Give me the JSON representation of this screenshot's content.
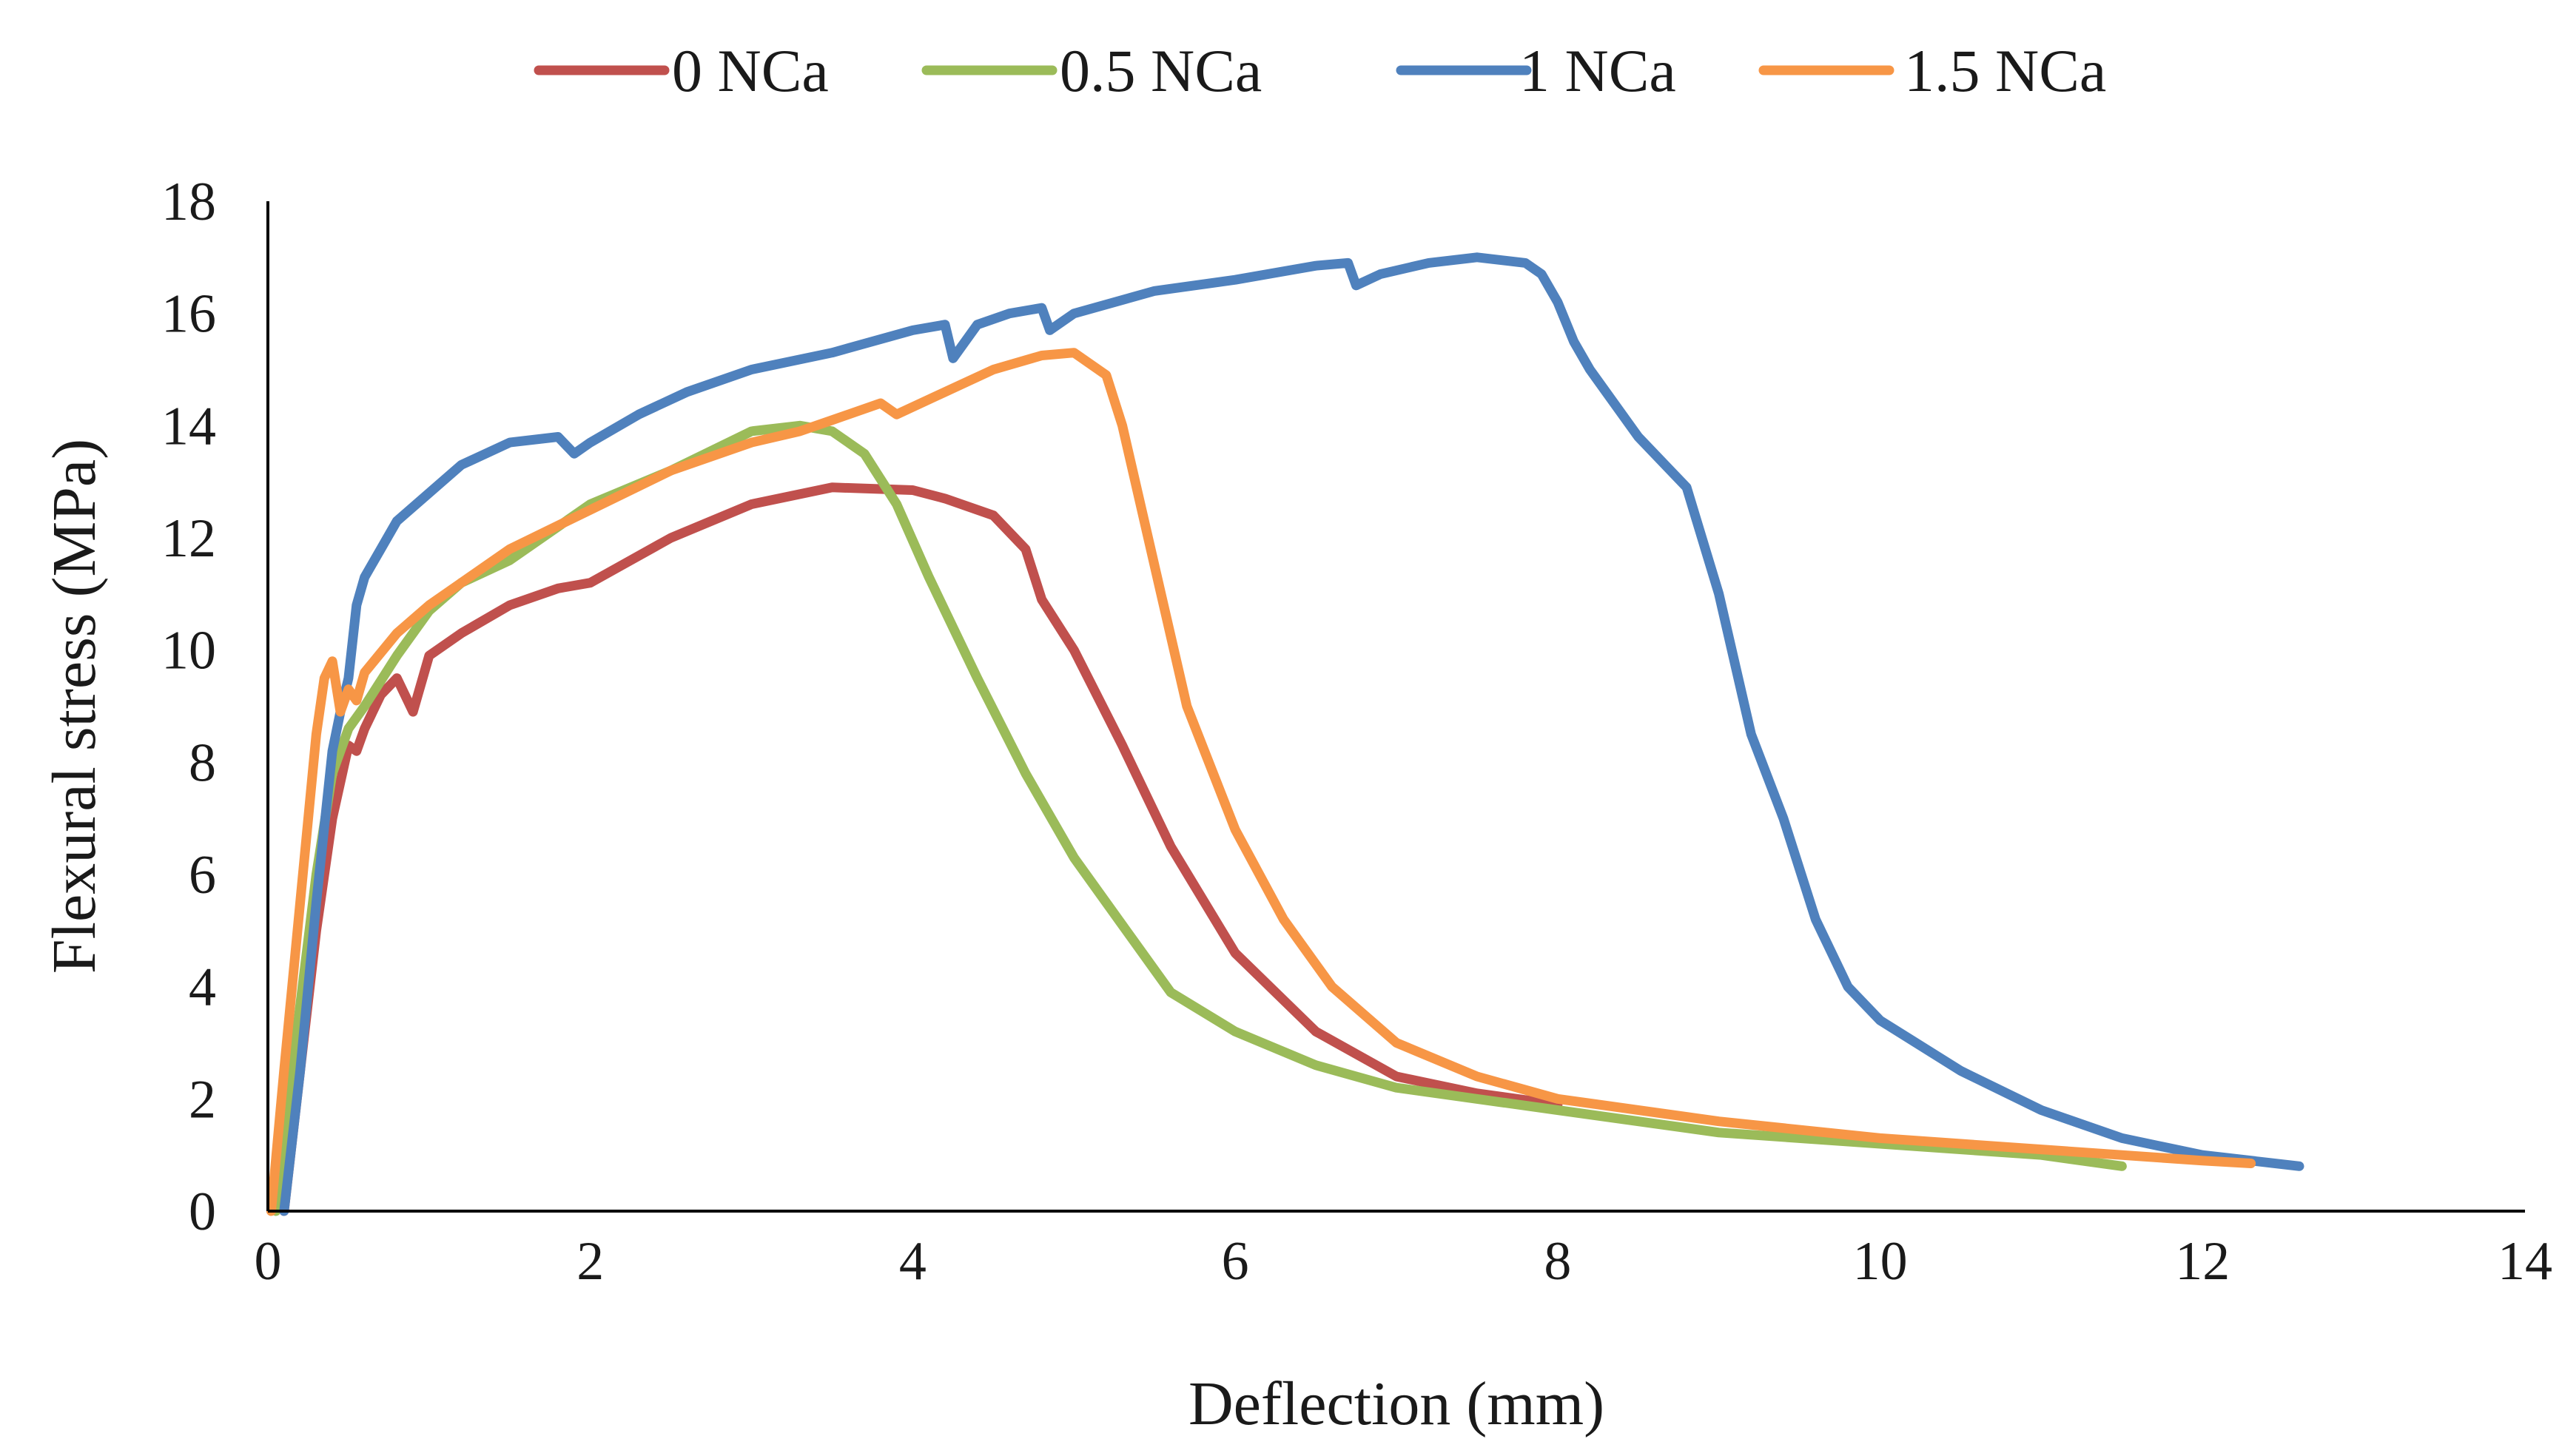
{
  "chart_data": {
    "type": "line",
    "title": "",
    "xlabel": "Deflection (mm)",
    "ylabel": "Flexural stress (MPa)",
    "xlim": [
      0,
      14
    ],
    "ylim": [
      0,
      18
    ],
    "xticks": [
      0,
      2,
      4,
      6,
      8,
      10,
      12,
      14
    ],
    "yticks": [
      0,
      2,
      4,
      6,
      8,
      10,
      12,
      14,
      16,
      18
    ],
    "legend_position": "top",
    "grid": false,
    "series": [
      {
        "name": "0 NCa",
        "color": "#c0504d",
        "x": [
          0.1,
          0.2,
          0.3,
          0.4,
          0.5,
          0.55,
          0.6,
          0.7,
          0.8,
          0.9,
          1.0,
          1.2,
          1.5,
          1.8,
          2.0,
          2.5,
          3.0,
          3.5,
          4.0,
          4.2,
          4.5,
          4.7,
          4.8,
          5.0,
          5.3,
          5.6,
          6.0,
          6.5,
          7.0,
          7.5,
          8.0
        ],
        "y": [
          0,
          2.5,
          5,
          7,
          8.3,
          8.2,
          8.6,
          9.2,
          9.5,
          8.9,
          9.9,
          10.3,
          10.8,
          11.1,
          11.2,
          12.0,
          12.6,
          12.9,
          12.85,
          12.7,
          12.4,
          11.8,
          10.9,
          10.0,
          8.3,
          6.5,
          4.6,
          3.2,
          2.4,
          2.1,
          1.9
        ]
      },
      {
        "name": "0.5 NCa",
        "color": "#9bbb59",
        "x": [
          0.05,
          0.15,
          0.3,
          0.4,
          0.5,
          0.6,
          0.8,
          1.0,
          1.2,
          1.5,
          2.0,
          2.5,
          3.0,
          3.3,
          3.5,
          3.7,
          3.9,
          4.1,
          4.4,
          4.7,
          5.0,
          5.3,
          5.6,
          6.0,
          6.5,
          7.0,
          8.0,
          9.0,
          10.0,
          11.0,
          11.5
        ],
        "y": [
          0,
          2.5,
          6,
          7.8,
          8.6,
          9.0,
          9.9,
          10.7,
          11.2,
          11.6,
          12.6,
          13.2,
          13.9,
          14.0,
          13.9,
          13.5,
          12.6,
          11.3,
          9.5,
          7.8,
          6.3,
          5.1,
          3.9,
          3.2,
          2.6,
          2.2,
          1.8,
          1.4,
          1.2,
          1.0,
          0.8
        ]
      },
      {
        "name": "1 NCa",
        "color": "#4f81bd",
        "x": [
          0.1,
          0.2,
          0.3,
          0.4,
          0.45,
          0.5,
          0.55,
          0.6,
          0.7,
          0.8,
          1.0,
          1.2,
          1.5,
          1.8,
          1.9,
          2.0,
          2.3,
          2.6,
          3.0,
          3.5,
          4.0,
          4.2,
          4.25,
          4.4,
          4.6,
          4.8,
          4.85,
          5.0,
          5.5,
          6.0,
          6.5,
          6.7,
          6.75,
          6.9,
          7.2,
          7.5,
          7.8,
          7.9,
          8.0,
          8.1,
          8.2,
          8.5,
          8.8,
          9.0,
          9.2,
          9.4,
          9.6,
          9.8,
          10.0,
          10.5,
          11.0,
          11.5,
          12.0,
          12.6
        ],
        "y": [
          0,
          2.5,
          5.5,
          8.2,
          8.9,
          9.5,
          10.8,
          11.3,
          11.8,
          12.3,
          12.8,
          13.3,
          13.7,
          13.8,
          13.5,
          13.7,
          14.2,
          14.6,
          15.0,
          15.3,
          15.7,
          15.8,
          15.2,
          15.8,
          16.0,
          16.1,
          15.7,
          16.0,
          16.4,
          16.6,
          16.85,
          16.9,
          16.5,
          16.7,
          16.9,
          17.0,
          16.9,
          16.7,
          16.2,
          15.5,
          15.0,
          13.8,
          12.9,
          11.0,
          8.5,
          7.0,
          5.2,
          4.0,
          3.4,
          2.5,
          1.8,
          1.3,
          1.0,
          0.8
        ]
      },
      {
        "name": "1.5 NCa",
        "color": "#f79646",
        "x": [
          0.02,
          0.1,
          0.2,
          0.3,
          0.35,
          0.4,
          0.45,
          0.5,
          0.55,
          0.6,
          0.8,
          1.0,
          1.2,
          1.5,
          2.0,
          2.5,
          3.0,
          3.3,
          3.5,
          3.8,
          3.9,
          4.2,
          4.5,
          4.8,
          5.0,
          5.2,
          5.3,
          5.5,
          5.7,
          6.0,
          6.3,
          6.6,
          7.0,
          7.5,
          8.0,
          9.0,
          10.0,
          11.0,
          12.0,
          12.3
        ],
        "y": [
          0,
          2.5,
          5.5,
          8.5,
          9.5,
          9.8,
          8.9,
          9.3,
          9.1,
          9.6,
          10.3,
          10.8,
          11.2,
          11.8,
          12.5,
          13.2,
          13.7,
          13.9,
          14.1,
          14.4,
          14.2,
          14.6,
          15.0,
          15.25,
          15.3,
          14.9,
          14.0,
          11.5,
          9.0,
          6.8,
          5.2,
          4.0,
          3.0,
          2.4,
          2.0,
          1.6,
          1.3,
          1.1,
          0.9,
          0.85
        ]
      }
    ]
  }
}
